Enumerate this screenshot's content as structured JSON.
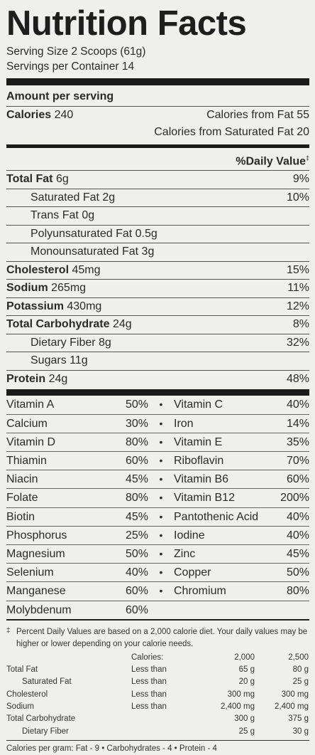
{
  "title": "Nutrition Facts",
  "serving_size": "Serving Size 2 Scoops (61g)",
  "servings_per_container": "Servings per Container 14",
  "amount_per_serving": "Amount per serving",
  "calories": {
    "label": "Calories",
    "value": "240"
  },
  "calories_from_fat": "Calories from Fat 55",
  "calories_from_sat_fat": "Calories from Saturated Fat 20",
  "daily_value_header": "%Daily Value",
  "daily_value_mark": "‡",
  "nutrients": [
    {
      "name": "Total Fat",
      "amount": "6g",
      "dv": "9%"
    },
    {
      "name": "Saturated Fat",
      "amount": "2g",
      "dv": "10%"
    },
    {
      "name": "Trans Fat",
      "amount": "0g",
      "dv": ""
    },
    {
      "name": "Polyunsaturated Fat",
      "amount": "0.5g",
      "dv": ""
    },
    {
      "name": "Monounsaturated Fat",
      "amount": "3g",
      "dv": ""
    },
    {
      "name": "Cholesterol",
      "amount": "45mg",
      "dv": "15%"
    },
    {
      "name": "Sodium",
      "amount": "265mg",
      "dv": "11%"
    },
    {
      "name": "Potassium",
      "amount": "430mg",
      "dv": "12%"
    },
    {
      "name": "Total Carbohydrate",
      "amount": "24g",
      "dv": "8%"
    },
    {
      "name": "Dietary Fiber",
      "amount": "8g",
      "dv": "32%"
    },
    {
      "name": "Sugars",
      "amount": "11g",
      "dv": ""
    },
    {
      "name": "Protein",
      "amount": "24g",
      "dv": "48%"
    }
  ],
  "vitamins": [
    {
      "a": "Vitamin A",
      "ap": "50%",
      "dot": "•",
      "b": "Vitamin C",
      "bp": "40%"
    },
    {
      "a": "Calcium",
      "ap": "30%",
      "dot": "•",
      "b": "Iron",
      "bp": "14%"
    },
    {
      "a": "Vitamin D",
      "ap": "80%",
      "dot": "•",
      "b": "Vitamin E",
      "bp": "35%"
    },
    {
      "a": "Thiamin",
      "ap": "60%",
      "dot": "•",
      "b": "Riboflavin",
      "bp": "70%"
    },
    {
      "a": "Niacin",
      "ap": "45%",
      "dot": "•",
      "b": "Vitamin B6",
      "bp": "60%"
    },
    {
      "a": "Folate",
      "ap": "80%",
      "dot": "•",
      "b": "Vitamin B12",
      "bp": "200%"
    },
    {
      "a": "Biotin",
      "ap": "45%",
      "dot": "•",
      "b": "Pantothenic Acid",
      "bp": "40%"
    },
    {
      "a": "Phosphorus",
      "ap": "25%",
      "dot": "•",
      "b": "Iodine",
      "bp": "40%"
    },
    {
      "a": "Magnesium",
      "ap": "50%",
      "dot": "•",
      "b": "Zinc",
      "bp": "45%"
    },
    {
      "a": "Selenium",
      "ap": "40%",
      "dot": "•",
      "b": "Copper",
      "bp": "50%"
    },
    {
      "a": "Manganese",
      "ap": "60%",
      "dot": "•",
      "b": "Chromium",
      "bp": "80%"
    },
    {
      "a": "Molybdenum",
      "ap": "60%",
      "dot": "",
      "b": "",
      "bp": ""
    }
  ],
  "footnote_mark": "‡",
  "footnote": "Percent Daily Values are based on a 2,000 calorie diet. Your daily values may be higher or lower depending on your calorie needs.",
  "dv_table": {
    "header": [
      "",
      "Calories:",
      "2,000",
      "2,500"
    ],
    "rows": [
      [
        "Total Fat",
        "Less than",
        "65 g",
        "80 g"
      ],
      [
        "Saturated Fat",
        "Less than",
        "20 g",
        "25 g"
      ],
      [
        "Cholesterol",
        "Less than",
        "300 mg",
        "300 mg"
      ],
      [
        "Sodium",
        "Less than",
        "2,400 mg",
        "2,400 mg"
      ],
      [
        "Total Carbohydrate",
        "",
        "300 g",
        "375 g"
      ],
      [
        "Dietary Fiber",
        "",
        "25 g",
        "30 g"
      ]
    ]
  },
  "calories_per_gram": "Calories per gram: Fat - 9 • Carbohydrates - 4 • Protein - 4"
}
